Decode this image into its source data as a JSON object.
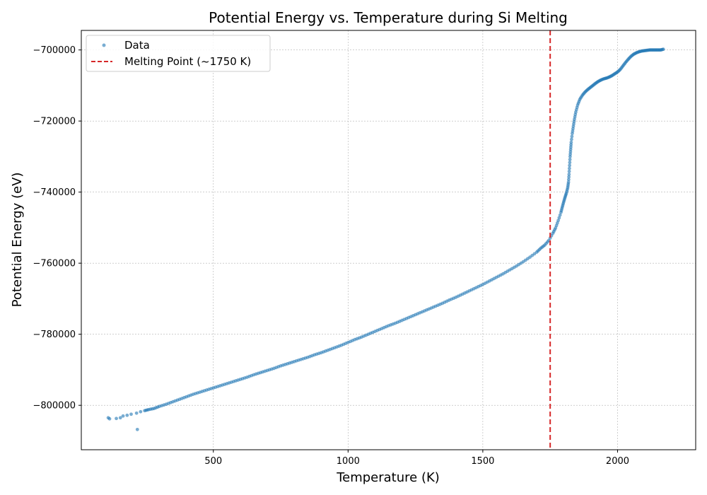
{
  "chart_data": {
    "type": "scatter",
    "title": "Potential Energy vs. Temperature during Si Melting",
    "xlabel": "Temperature (K)",
    "ylabel": "Potential Energy (eV)",
    "xlim": [
      10,
      2290
    ],
    "ylim": [
      -812500,
      -694500
    ],
    "xticks": [
      500,
      1000,
      1500,
      2000
    ],
    "yticks": [
      -800000,
      -780000,
      -760000,
      -740000,
      -720000,
      -700000
    ],
    "grid": true,
    "legend_position": "upper-left",
    "series": [
      {
        "name": "Data",
        "kind": "scatter",
        "color": "#1f77b4",
        "points": [
          [
            110,
            -803500
          ],
          [
            115,
            -803800
          ],
          [
            140,
            -803700
          ],
          [
            155,
            -803500
          ],
          [
            165,
            -803000
          ],
          [
            180,
            -802800
          ],
          [
            195,
            -802500
          ],
          [
            215,
            -802200
          ],
          [
            218,
            -806800
          ],
          [
            230,
            -801800
          ],
          [
            245,
            -801500
          ],
          [
            260,
            -801200
          ],
          [
            280,
            -800900
          ],
          [
            300,
            -800300
          ],
          [
            325,
            -799700
          ],
          [
            350,
            -799000
          ],
          [
            375,
            -798300
          ],
          [
            400,
            -797600
          ],
          [
            425,
            -796900
          ],
          [
            450,
            -796300
          ],
          [
            475,
            -795700
          ],
          [
            500,
            -795100
          ],
          [
            525,
            -794500
          ],
          [
            550,
            -793900
          ],
          [
            575,
            -793300
          ],
          [
            600,
            -792700
          ],
          [
            625,
            -792100
          ],
          [
            650,
            -791400
          ],
          [
            675,
            -790800
          ],
          [
            700,
            -790200
          ],
          [
            725,
            -789600
          ],
          [
            750,
            -788900
          ],
          [
            775,
            -788300
          ],
          [
            800,
            -787700
          ],
          [
            825,
            -787100
          ],
          [
            850,
            -786500
          ],
          [
            875,
            -785800
          ],
          [
            900,
            -785200
          ],
          [
            925,
            -784500
          ],
          [
            950,
            -783800
          ],
          [
            975,
            -783100
          ],
          [
            1000,
            -782300
          ],
          [
            1025,
            -781500
          ],
          [
            1050,
            -780800
          ],
          [
            1075,
            -780000
          ],
          [
            1100,
            -779200
          ],
          [
            1125,
            -778400
          ],
          [
            1150,
            -777600
          ],
          [
            1175,
            -776900
          ],
          [
            1200,
            -776100
          ],
          [
            1225,
            -775300
          ],
          [
            1250,
            -774500
          ],
          [
            1275,
            -773700
          ],
          [
            1300,
            -772900
          ],
          [
            1325,
            -772100
          ],
          [
            1350,
            -771300
          ],
          [
            1375,
            -770400
          ],
          [
            1400,
            -769600
          ],
          [
            1425,
            -768700
          ],
          [
            1450,
            -767800
          ],
          [
            1475,
            -766900
          ],
          [
            1500,
            -766000
          ],
          [
            1525,
            -765000
          ],
          [
            1550,
            -764000
          ],
          [
            1575,
            -763000
          ],
          [
            1600,
            -761900
          ],
          [
            1625,
            -760800
          ],
          [
            1650,
            -759600
          ],
          [
            1675,
            -758300
          ],
          [
            1700,
            -756900
          ],
          [
            1715,
            -755800
          ],
          [
            1730,
            -754900
          ],
          [
            1745,
            -753600
          ],
          [
            1760,
            -751600
          ],
          [
            1770,
            -750100
          ],
          [
            1780,
            -748000
          ],
          [
            1790,
            -745700
          ],
          [
            1795,
            -744200
          ],
          [
            1800,
            -742800
          ],
          [
            1805,
            -741500
          ],
          [
            1810,
            -740300
          ],
          [
            1815,
            -738800
          ],
          [
            1818,
            -737200
          ],
          [
            1820,
            -735000
          ],
          [
            1822,
            -732500
          ],
          [
            1824,
            -730000
          ],
          [
            1826,
            -728000
          ],
          [
            1828,
            -726000
          ],
          [
            1832,
            -723500
          ],
          [
            1836,
            -721500
          ],
          [
            1840,
            -719500
          ],
          [
            1845,
            -717500
          ],
          [
            1852,
            -715500
          ],
          [
            1860,
            -713900
          ],
          [
            1870,
            -712700
          ],
          [
            1880,
            -711800
          ],
          [
            1890,
            -711100
          ],
          [
            1900,
            -710500
          ],
          [
            1910,
            -709900
          ],
          [
            1920,
            -709300
          ],
          [
            1930,
            -708800
          ],
          [
            1940,
            -708400
          ],
          [
            1950,
            -708100
          ],
          [
            1960,
            -707900
          ],
          [
            1970,
            -707600
          ],
          [
            1980,
            -707200
          ],
          [
            1990,
            -706700
          ],
          [
            2000,
            -706200
          ],
          [
            2010,
            -705500
          ],
          [
            2020,
            -704500
          ],
          [
            2030,
            -703500
          ],
          [
            2040,
            -702600
          ],
          [
            2050,
            -701800
          ],
          [
            2060,
            -701200
          ],
          [
            2070,
            -700800
          ],
          [
            2080,
            -700500
          ],
          [
            2090,
            -700300
          ],
          [
            2100,
            -700200
          ],
          [
            2110,
            -700100
          ],
          [
            2120,
            -700000
          ],
          [
            2130,
            -700000
          ],
          [
            2140,
            -700000
          ],
          [
            2150,
            -700000
          ],
          [
            2160,
            -700000
          ],
          [
            2170,
            -699800
          ]
        ]
      },
      {
        "name": "Melting Point (~1750 K)",
        "kind": "vline",
        "x": 1750,
        "color": "#d62728"
      }
    ]
  }
}
